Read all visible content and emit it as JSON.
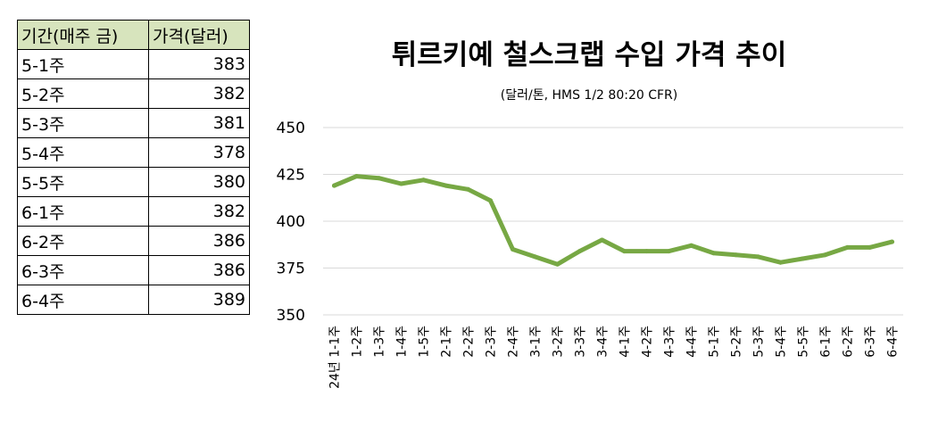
{
  "table": {
    "headers": [
      "기간(매주 금)",
      "가격(달러)"
    ],
    "rows": [
      [
        "5-1주",
        "383"
      ],
      [
        "5-2주",
        "382"
      ],
      [
        "5-3주",
        "381"
      ],
      [
        "5-4주",
        "378"
      ],
      [
        "5-5주",
        "380"
      ],
      [
        "6-1주",
        "382"
      ],
      [
        "6-2주",
        "386"
      ],
      [
        "6-3주",
        "386"
      ],
      [
        "6-4주",
        "389"
      ]
    ]
  },
  "chart_data": {
    "type": "line",
    "title": "튀르키예 철스크랩 수입 가격 추이",
    "subtitle": "(달러/톤, HMS 1/2 80:20 CFR)",
    "categories": [
      "24년 1-1주",
      "1-2주",
      "1-3주",
      "1-4주",
      "1-5주",
      "2-1주",
      "2-2주",
      "2-3주",
      "2-4주",
      "3-1주",
      "3-2주",
      "3-3주",
      "3-4주",
      "4-1주",
      "4-2주",
      "4-3주",
      "4-4주",
      "5-1주",
      "5-2주",
      "5-3주",
      "5-4주",
      "5-5주",
      "6-1주",
      "6-2주",
      "6-3주",
      "6-4주"
    ],
    "series": [
      {
        "values": [
          419,
          424,
          423,
          420,
          422,
          419,
          417,
          411,
          385,
          381,
          377,
          384,
          390,
          384,
          384,
          384,
          387,
          383,
          382,
          381,
          378,
          380,
          382,
          386,
          386,
          389
        ]
      }
    ],
    "ylim": [
      350,
      450
    ],
    "yticks": [
      350,
      375,
      400,
      425,
      450
    ],
    "grid": true,
    "line_color": "#77a844"
  }
}
